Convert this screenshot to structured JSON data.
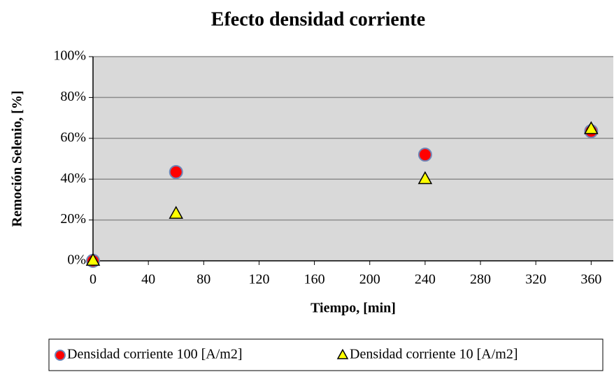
{
  "chart_data": {
    "type": "scatter",
    "title": "Efecto densidad corriente",
    "xlabel": "Tiempo, [min]",
    "ylabel": "Remoción  Selenio, [%]",
    "xlim": [
      0,
      376
    ],
    "xticks": [
      0,
      40,
      80,
      120,
      160,
      200,
      240,
      280,
      320,
      360
    ],
    "ylim": [
      0,
      100
    ],
    "yticks": [
      {
        "value": 0,
        "label": "0%"
      },
      {
        "value": 20,
        "label": "20%"
      },
      {
        "value": 40,
        "label": "40%"
      },
      {
        "value": 60,
        "label": "60%"
      },
      {
        "value": 80,
        "label": "80%"
      },
      {
        "value": 100,
        "label": "100%"
      }
    ],
    "grid": true,
    "legend": "bottom",
    "series": [
      {
        "name": "Densidad corriente 100 [A/m2]",
        "color": "#ff0000",
        "marker": "circle",
        "x": [
          0,
          60,
          240,
          360
        ],
        "values": [
          0,
          43.5,
          52,
          63.5
        ]
      },
      {
        "name": "Densidad corriente 10 [A/m2]",
        "color": "#ffff00",
        "marker": "triangle",
        "x": [
          0,
          60,
          240,
          360
        ],
        "values": [
          0,
          23,
          40,
          64.5
        ]
      }
    ]
  }
}
